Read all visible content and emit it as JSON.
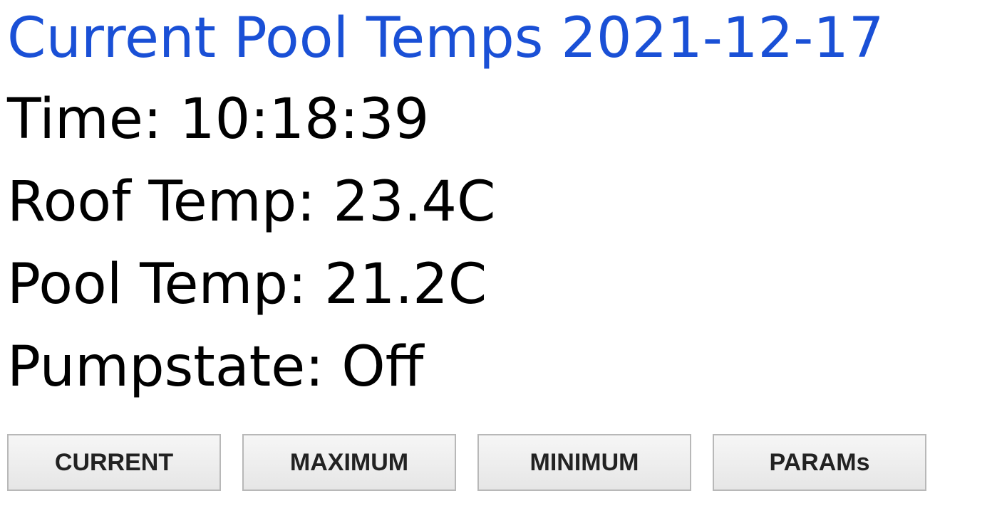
{
  "header": {
    "title": "Current Pool Temps 2021-12-17"
  },
  "readings": {
    "time_label": "Time:",
    "time_value": "10:18:39",
    "roof_label": "Roof Temp:",
    "roof_value": "23.4C",
    "pool_label": "Pool Temp:",
    "pool_value": "21.2C",
    "pump_label": "Pumpstate:",
    "pump_value": "Off"
  },
  "buttons": {
    "current": "CURRENT",
    "maximum": "MAXIMUM",
    "minimum": "MINIMUM",
    "params": "PARAMs"
  },
  "colors": {
    "title": "#1a50d6",
    "text": "#000000",
    "button_text": "#222222",
    "button_border": "#b8b8b8"
  }
}
